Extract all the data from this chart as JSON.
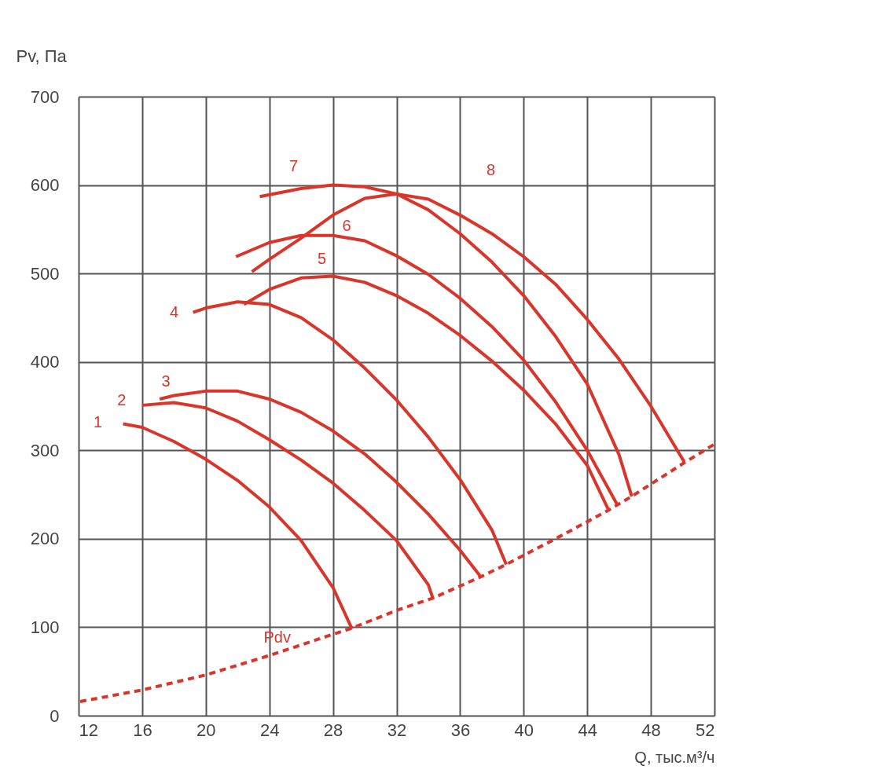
{
  "chart_data": {
    "type": "line",
    "xlabel": "Q, тыс.м³/ч",
    "ylabel": "Pv, Па",
    "xlim": [
      12,
      52
    ],
    "xticks": [
      12,
      16,
      20,
      24,
      28,
      32,
      36,
      40,
      44,
      48,
      52
    ],
    "ylim": [
      0,
      700
    ],
    "yticks": [
      0,
      100,
      200,
      300,
      400,
      500,
      600,
      700
    ],
    "grid": true,
    "marker": "none",
    "series": [
      {
        "name": "1",
        "color": "#d9352b",
        "line_style": "solid",
        "x": [
          14.8,
          16,
          18,
          20,
          22,
          24,
          26,
          28,
          29.2
        ],
        "values": [
          330,
          326,
          310,
          290,
          266,
          236,
          198,
          145,
          98
        ]
      },
      {
        "name": "2",
        "color": "#d9352b",
        "line_style": "solid",
        "x": [
          16,
          18,
          20,
          22,
          24,
          26,
          28,
          30,
          32,
          34,
          34.3
        ],
        "values": [
          351,
          354,
          348,
          333,
          312,
          289,
          263,
          232,
          198,
          148,
          132
        ]
      },
      {
        "name": "3",
        "color": "#d9352b",
        "line_style": "solid",
        "x": [
          17.1,
          18,
          20,
          22,
          24,
          26,
          28,
          30,
          32,
          34,
          36,
          37.3
        ],
        "values": [
          358,
          362,
          367,
          367,
          358,
          343,
          322,
          296,
          264,
          228,
          187,
          157
        ]
      },
      {
        "name": "4",
        "color": "#d9352b",
        "line_style": "solid",
        "x": [
          19.2,
          20,
          22,
          24,
          26,
          28,
          30,
          32,
          34,
          36,
          38,
          38.9
        ],
        "values": [
          456,
          461,
          468,
          465,
          450,
          425,
          393,
          357,
          315,
          267,
          210,
          171
        ]
      },
      {
        "name": "5",
        "color": "#d9352b",
        "line_style": "solid",
        "x": [
          22.4,
          24,
          26,
          28,
          30,
          32,
          34,
          36,
          38,
          40,
          42,
          44,
          45.3
        ],
        "values": [
          465,
          482,
          495,
          497,
          490,
          475,
          455,
          430,
          401,
          368,
          330,
          283,
          234
        ]
      },
      {
        "name": "6",
        "color": "#d9352b",
        "line_style": "solid",
        "x": [
          21.9,
          24,
          26,
          28,
          30,
          32,
          34,
          36,
          38,
          40,
          42,
          44,
          45.9
        ],
        "values": [
          519,
          535,
          543,
          543,
          537,
          520,
          499,
          472,
          440,
          402,
          355,
          300,
          238
        ]
      },
      {
        "name": "7",
        "color": "#d9352b",
        "line_style": "solid",
        "x": [
          23.4,
          26,
          28,
          30,
          32,
          34,
          36,
          38,
          40,
          42,
          44,
          46,
          46.8
        ],
        "values": [
          587,
          596,
          600,
          598,
          590,
          572,
          545,
          513,
          475,
          429,
          375,
          295,
          248
        ]
      },
      {
        "name": "8",
        "color": "#d9352b",
        "line_style": "solid",
        "x": [
          22.9,
          24,
          26,
          28,
          30,
          32,
          34,
          36,
          38,
          40,
          42,
          44,
          46,
          48,
          50.1
        ],
        "values": [
          502,
          516,
          540,
          566,
          585,
          590,
          584,
          566,
          545,
          519,
          488,
          448,
          403,
          350,
          287
        ]
      },
      {
        "name": "Pdv",
        "color": "#d9352b",
        "line_style": "dashed",
        "x": [
          12.1,
          16,
          20,
          24,
          28,
          29.2,
          32,
          34.3,
          37.3,
          38.9,
          42,
          45.3,
          46.8,
          50.1,
          52
        ],
        "values": [
          16,
          29,
          46,
          68,
          92,
          99,
          119,
          133,
          157,
          171,
          200,
          232,
          248,
          286,
          307
        ]
      }
    ]
  }
}
